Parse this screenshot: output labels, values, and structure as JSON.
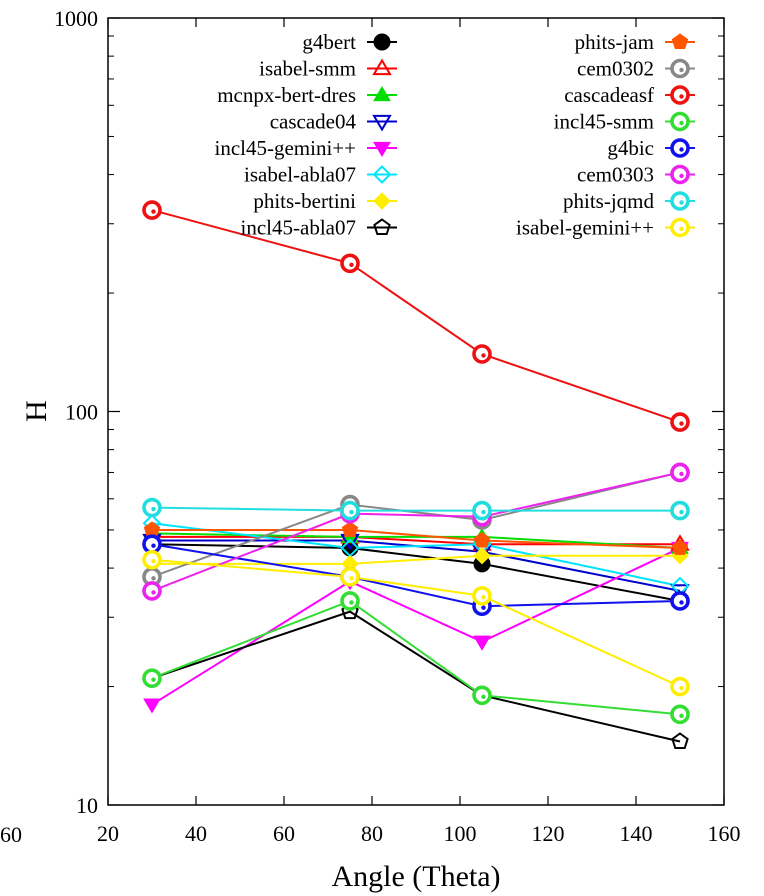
{
  "chart_data": {
    "type": "line",
    "xlabel": "Angle (Theta)",
    "ylabel": "H",
    "xlim": [
      20,
      160
    ],
    "ylim": [
      10,
      1000
    ],
    "yscale": "log",
    "x_ticks": [
      "20",
      "40",
      "60",
      "80",
      "100",
      "120",
      "140",
      "160"
    ],
    "x_tick_values": [
      20,
      40,
      60,
      80,
      100,
      120,
      140,
      160
    ],
    "x_edge_label": "60",
    "y_ticks": [
      "10",
      "100",
      "1000"
    ],
    "y_tick_values": [
      10,
      100,
      1000
    ],
    "legend_position": "top",
    "x": [
      30,
      75,
      105,
      150
    ],
    "series": [
      {
        "name": "g4bert",
        "color": "#000000",
        "marker": "circle-filled",
        "values": [
          46,
          45,
          41,
          33
        ]
      },
      {
        "name": "isabel-smm",
        "color": "#ff0000",
        "marker": "triangle-up-open",
        "values": [
          48,
          48,
          46,
          46
        ]
      },
      {
        "name": "mcnpx-bert-dres",
        "color": "#00dd00",
        "marker": "triangle-up-filled",
        "values": [
          49,
          48,
          48,
          45
        ]
      },
      {
        "name": "cascade04",
        "color": "#0000cc",
        "marker": "triangle-down-open",
        "values": [
          47,
          47,
          44,
          35
        ]
      },
      {
        "name": "incl45-gemini++",
        "color": "#ff00ff",
        "marker": "triangle-down-filled",
        "values": [
          18,
          37,
          26,
          45
        ]
      },
      {
        "name": "isabel-abla07",
        "color": "#00e5ff",
        "marker": "diamond-open",
        "values": [
          52,
          45,
          46,
          36
        ]
      },
      {
        "name": "phits-bertini",
        "color": "#ffee00",
        "marker": "diamond-filled",
        "values": [
          41,
          41,
          43,
          43
        ]
      },
      {
        "name": "incl45-abla07",
        "color": "#000000",
        "marker": "pentagon-open",
        "values": [
          21,
          31,
          19,
          14.5
        ]
      },
      {
        "name": "phits-jam",
        "color": "#ff5500",
        "marker": "pentagon-filled",
        "values": [
          50,
          50,
          47,
          45
        ]
      },
      {
        "name": "cem0302",
        "color": "#888888",
        "marker": "circle-ring",
        "values": [
          38,
          58,
          53,
          70
        ]
      },
      {
        "name": "cascadeasf",
        "color": "#ee1111",
        "marker": "circle-ring",
        "values": [
          325,
          238,
          140,
          94
        ]
      },
      {
        "name": "incl45-smm",
        "color": "#33dd33",
        "marker": "circle-ring",
        "values": [
          21,
          33,
          19,
          17
        ]
      },
      {
        "name": "g4bic",
        "color": "#1111ee",
        "marker": "circle-ring",
        "values": [
          46,
          38,
          32,
          33
        ]
      },
      {
        "name": "cem0303",
        "color": "#ee22ee",
        "marker": "circle-ring",
        "values": [
          35,
          55,
          54,
          70
        ]
      },
      {
        "name": "phits-jqmd",
        "color": "#22dddd",
        "marker": "circle-ring",
        "values": [
          57,
          56,
          56,
          56
        ]
      },
      {
        "name": "isabel-gemini++",
        "color": "#ffee00",
        "marker": "circle-ring",
        "values": [
          42,
          38,
          34,
          20
        ]
      }
    ]
  }
}
